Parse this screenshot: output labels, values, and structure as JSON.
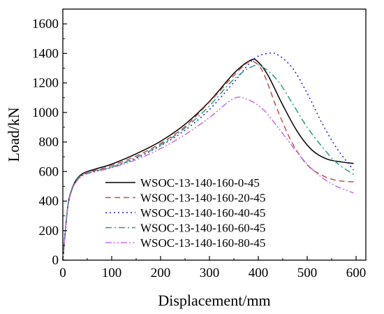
{
  "chart_data": {
    "type": "line",
    "title": "",
    "xlabel": "Displacement/mm",
    "ylabel": "Load/kN",
    "xlim": [
      0,
      620
    ],
    "ylim": [
      0,
      1700
    ],
    "xticks": [
      0,
      100,
      200,
      300,
      400,
      500,
      600
    ],
    "yticks": [
      0,
      200,
      400,
      600,
      800,
      1000,
      1200,
      1400,
      1600
    ],
    "grid": false,
    "legend_position": "lower-center",
    "series": [
      {
        "name": "WSOC-13-140-160-0-45",
        "color": "#000000",
        "dash": "solid",
        "x": [
          0,
          10,
          20,
          30,
          40,
          50,
          75,
          100,
          150,
          200,
          250,
          300,
          350,
          385,
          400,
          420,
          450,
          480,
          510,
          540,
          570,
          595
        ],
        "y": [
          0,
          360,
          495,
          555,
          585,
          600,
          625,
          650,
          720,
          805,
          920,
          1075,
          1265,
          1355,
          1340,
          1250,
          1050,
          870,
          745,
          685,
          665,
          655
        ]
      },
      {
        "name": "WSOC-13-140-160-20-45",
        "color": "#c0504d",
        "dash": "dashed",
        "x": [
          0,
          10,
          20,
          30,
          40,
          50,
          75,
          100,
          150,
          200,
          250,
          300,
          350,
          375,
          390,
          410,
          440,
          470,
          500,
          530,
          560,
          595
        ],
        "y": [
          0,
          355,
          490,
          550,
          580,
          595,
          615,
          640,
          705,
          790,
          905,
          1070,
          1250,
          1330,
          1345,
          1270,
          1010,
          790,
          645,
          575,
          540,
          530
        ]
      },
      {
        "name": "WSOC-13-140-160-40-45",
        "color": "#1f1fcc",
        "dash": "dotted",
        "x": [
          0,
          10,
          20,
          30,
          40,
          50,
          75,
          100,
          150,
          200,
          250,
          300,
          350,
          390,
          420,
          440,
          470,
          500,
          530,
          560,
          595
        ],
        "y": [
          0,
          355,
          490,
          545,
          575,
          590,
          610,
          630,
          690,
          775,
          880,
          1020,
          1205,
          1360,
          1400,
          1390,
          1300,
          1130,
          930,
          760,
          610
        ]
      },
      {
        "name": "WSOC-13-140-160-60-45",
        "color": "#2e9a80",
        "dash": "dashdot",
        "x": [
          0,
          10,
          20,
          30,
          40,
          50,
          75,
          100,
          150,
          200,
          250,
          300,
          350,
          390,
          410,
          440,
          470,
          500,
          530,
          560,
          595
        ],
        "y": [
          0,
          355,
          490,
          545,
          575,
          590,
          610,
          630,
          695,
          780,
          895,
          1045,
          1225,
          1315,
          1305,
          1215,
          1060,
          900,
          770,
          660,
          580
        ]
      },
      {
        "name": "WSOC-13-140-160-80-45",
        "color": "#c070e0",
        "dash": "dashdotdot",
        "x": [
          0,
          10,
          20,
          30,
          40,
          50,
          75,
          100,
          150,
          200,
          250,
          300,
          350,
          380,
          410,
          440,
          470,
          500,
          530,
          560,
          595
        ],
        "y": [
          0,
          350,
          485,
          540,
          570,
          585,
          605,
          625,
          680,
          755,
          850,
          965,
          1095,
          1085,
          1020,
          900,
          770,
          650,
          560,
          500,
          455
        ]
      }
    ]
  }
}
